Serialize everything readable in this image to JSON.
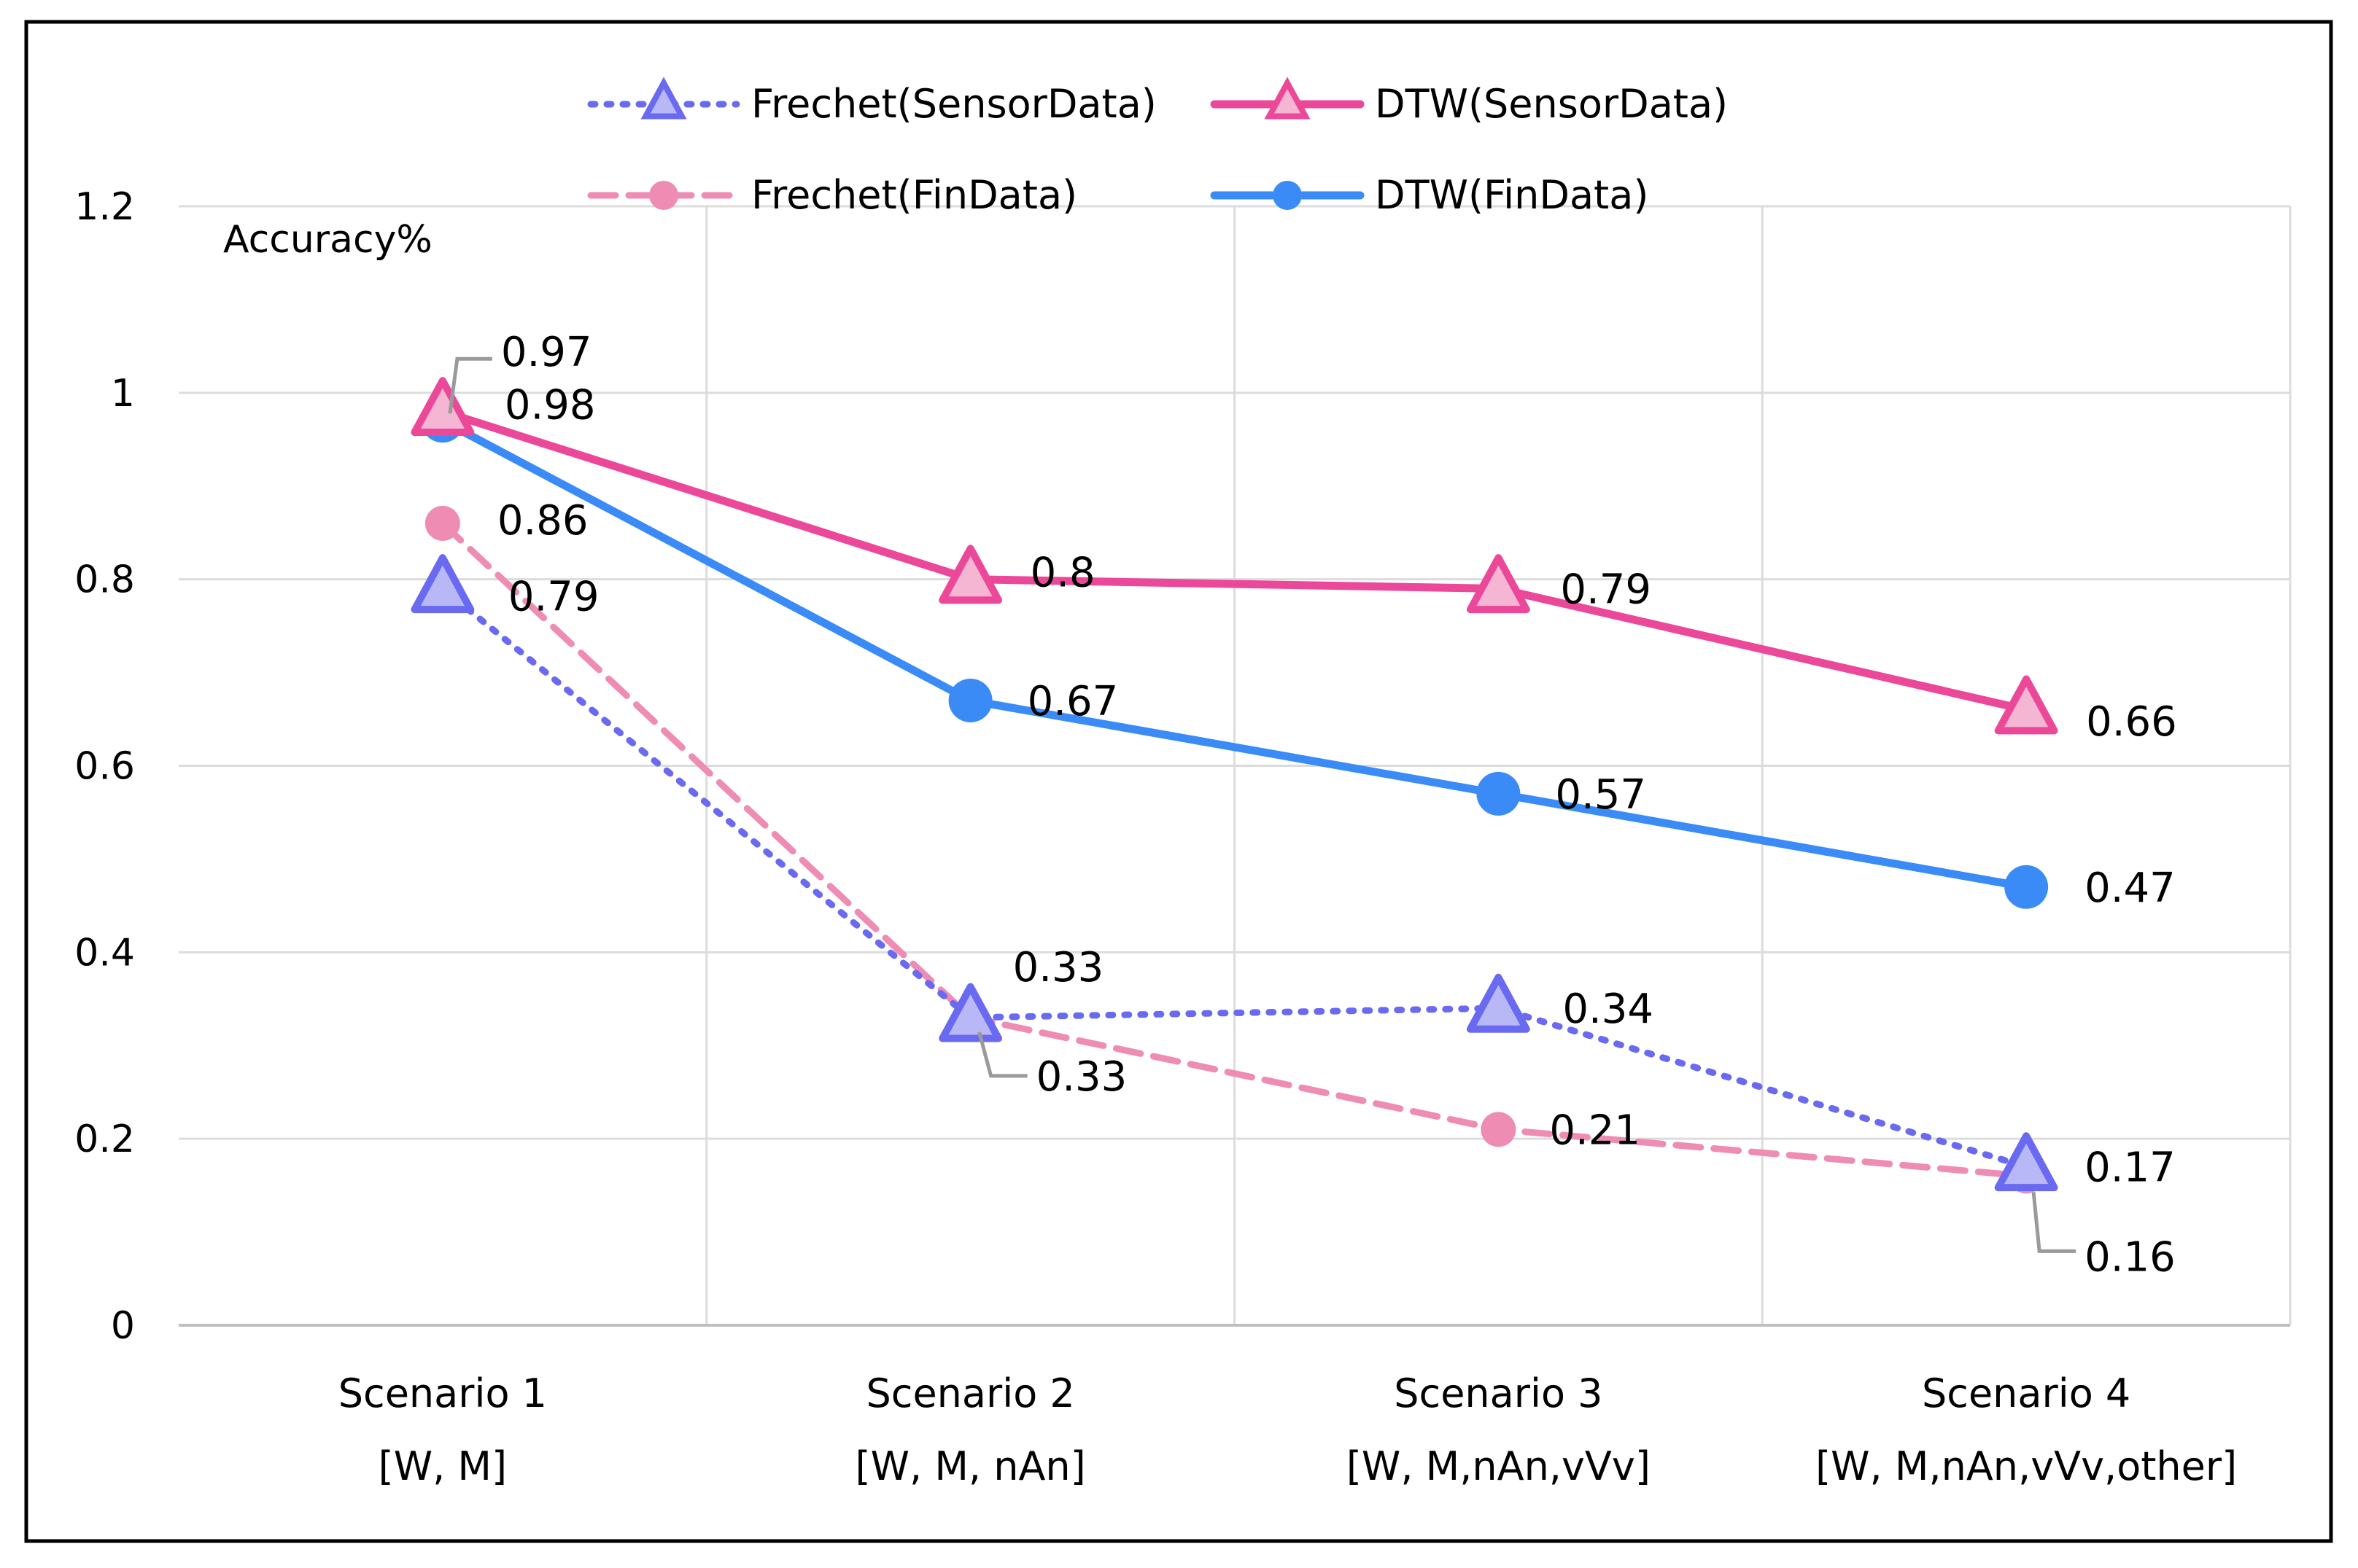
{
  "chart_data": {
    "type": "line",
    "ylabel": "Accuracy%",
    "ylim": [
      0,
      1.2
    ],
    "ytick_step": 0.2,
    "yticks": [
      "0",
      "0.2",
      "0.4",
      "0.6",
      "0.8",
      "1",
      "1.2"
    ],
    "grid": true,
    "legend_position": "top",
    "categories": [
      {
        "line1": "Scenario 1",
        "line2": "[W, M]"
      },
      {
        "line1": "Scenario 2",
        "line2": "[W, M, nAn]"
      },
      {
        "line1": "Scenario 3",
        "line2": "[W, M,nAn,vVv]"
      },
      {
        "line1": "Scenario 4",
        "line2": "[W, M,nAn,vVv,other]"
      }
    ],
    "series": [
      {
        "name": "Frechet(SensorData)",
        "values": [
          0.79,
          0.33,
          0.34,
          0.17
        ],
        "labels": [
          "0.79",
          "0.33",
          "0.34",
          "0.17"
        ],
        "color": "#6A6AF0",
        "line_style": "dotted",
        "marker": "triangle"
      },
      {
        "name": "DTW(SensorData)",
        "values": [
          0.98,
          0.8,
          0.79,
          0.66
        ],
        "labels": [
          "0.98",
          "0.8",
          "0.79",
          "0.66"
        ],
        "color": "#EC4899",
        "line_style": "solid",
        "marker": "triangle"
      },
      {
        "name": "Frechet(FinData)",
        "values": [
          0.86,
          0.33,
          0.21,
          0.16
        ],
        "labels": [
          "0.86",
          "0.33",
          "0.21",
          "0.16"
        ],
        "color": "#EE8CB4",
        "line_style": "dashed",
        "marker": "circle"
      },
      {
        "name": "DTW(FinData)",
        "values": [
          0.97,
          0.67,
          0.57,
          0.47
        ],
        "labels": [
          "0.97",
          "0.67",
          "0.57",
          "0.47"
        ],
        "color": "#3B8BF7",
        "line_style": "solid",
        "marker": "circle"
      }
    ]
  }
}
